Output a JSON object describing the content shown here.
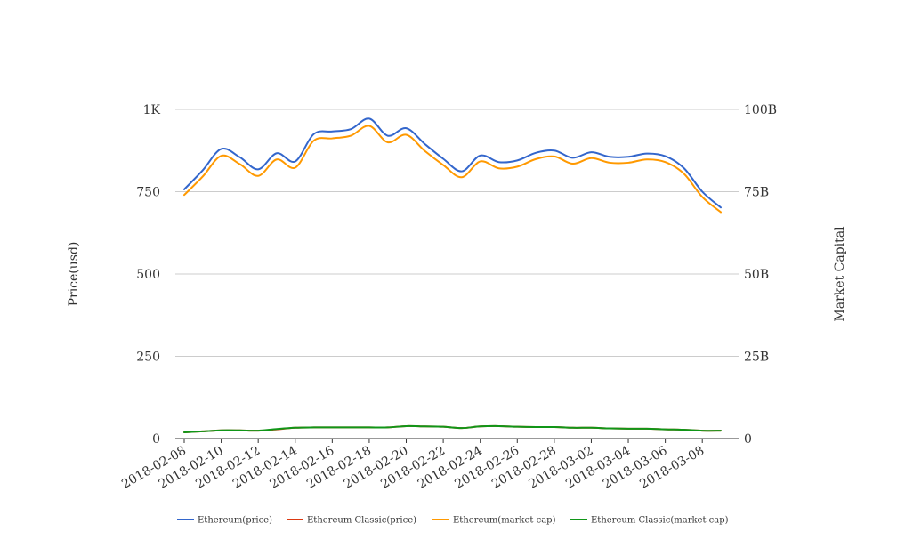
{
  "chart_data": {
    "type": "line",
    "title": "",
    "xlabel": "",
    "ylabel": "Price(usd)",
    "y2label": "Market Capital",
    "ylim": [
      0,
      1000
    ],
    "y2lim": [
      0,
      100000000000
    ],
    "y_ticks": [
      {
        "value": 0,
        "label": "0"
      },
      {
        "value": 250,
        "label": "250"
      },
      {
        "value": 500,
        "label": "500"
      },
      {
        "value": 750,
        "label": "750"
      },
      {
        "value": 1000,
        "label": "1K"
      }
    ],
    "y2_ticks": [
      {
        "value": 0,
        "label": "0"
      },
      {
        "value": 25000000000,
        "label": "25B"
      },
      {
        "value": 50000000000,
        "label": "50B"
      },
      {
        "value": 75000000000,
        "label": "75B"
      },
      {
        "value": 100000000000,
        "label": "100B"
      }
    ],
    "x_tick_labels": [
      "2018-02-08",
      "2018-02-10",
      "2018-02-12",
      "2018-02-14",
      "2018-02-16",
      "2018-02-18",
      "2018-02-20",
      "2018-02-22",
      "2018-02-24",
      "2018-02-26",
      "2018-02-28",
      "2018-03-02",
      "2018-03-04",
      "2018-03-06",
      "2018-03-08"
    ],
    "x": [
      "2018-02-08",
      "2018-02-09",
      "2018-02-10",
      "2018-02-11",
      "2018-02-12",
      "2018-02-13",
      "2018-02-14",
      "2018-02-15",
      "2018-02-16",
      "2018-02-17",
      "2018-02-18",
      "2018-02-19",
      "2018-02-20",
      "2018-02-21",
      "2018-02-22",
      "2018-02-23",
      "2018-02-24",
      "2018-02-25",
      "2018-02-26",
      "2018-02-27",
      "2018-02-28",
      "2018-03-01",
      "2018-03-02",
      "2018-03-03",
      "2018-03-04",
      "2018-03-05",
      "2018-03-06",
      "2018-03-07",
      "2018-03-08",
      "2018-03-09"
    ],
    "grid": true,
    "legend_position": "bottom",
    "series": [
      {
        "name": "Ethereum(price)",
        "axis": "left",
        "color": "#3366cc",
        "values": [
          757,
          815,
          880,
          855,
          818,
          867,
          842,
          925,
          933,
          940,
          972,
          920,
          943,
          895,
          850,
          812,
          860,
          840,
          845,
          868,
          875,
          853,
          870,
          856,
          856,
          866,
          858,
          822,
          750,
          702
        ]
      },
      {
        "name": "Ethereum Classic(price)",
        "axis": "left",
        "color": "#dc3912",
        "values": [
          19,
          22,
          25,
          25,
          24,
          28,
          33,
          34,
          34,
          34,
          34,
          34,
          38,
          37,
          36,
          32,
          37,
          38,
          36,
          35,
          35,
          33,
          33,
          31,
          30,
          30,
          28,
          27,
          24,
          24
        ]
      },
      {
        "name": "Ethereum(market cap)",
        "axis": "right",
        "color": "#ff9900",
        "values": [
          74000000000,
          79600000000,
          85900000000,
          83400000000,
          79800000000,
          84800000000,
          82300000000,
          90500000000,
          91200000000,
          92000000000,
          95000000000,
          90000000000,
          92300000000,
          87400000000,
          83100000000,
          79400000000,
          84200000000,
          82100000000,
          82600000000,
          84900000000,
          85700000000,
          83500000000,
          85200000000,
          83800000000,
          83800000000,
          84800000000,
          84000000000,
          80500000000,
          73400000000,
          68800000000
        ]
      },
      {
        "name": "Ethereum Classic(market cap)",
        "axis": "right",
        "color": "#109618",
        "values": [
          1900000000,
          2200000000,
          2500000000,
          2500000000,
          2400000000,
          2900000000,
          3300000000,
          3400000000,
          3400000000,
          3400000000,
          3400000000,
          3400000000,
          3800000000,
          3700000000,
          3600000000,
          3200000000,
          3700000000,
          3800000000,
          3600000000,
          3500000000,
          3500000000,
          3300000000,
          3300000000,
          3100000000,
          3000000000,
          3000000000,
          2800000000,
          2700000000,
          2400000000,
          2400000000
        ]
      }
    ]
  }
}
